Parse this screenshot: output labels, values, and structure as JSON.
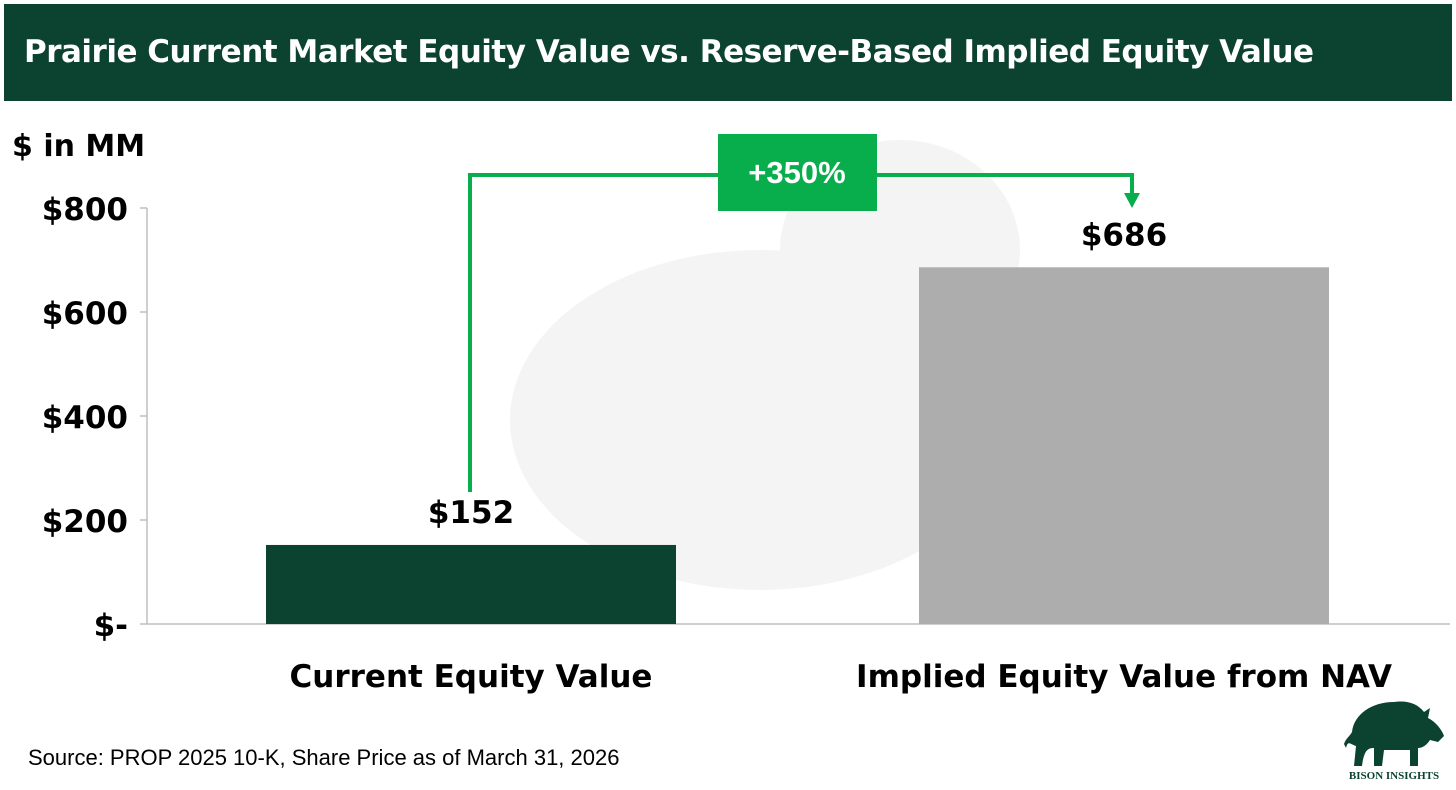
{
  "header": {
    "title": "Prairie Current Market Equity Value vs. Reserve-Based Implied Equity Value"
  },
  "chart_data": {
    "type": "bar",
    "title": "Prairie Current Market Equity Value vs. Reserve-Based Implied Equity Value",
    "ylabel": "$ in MM",
    "xlabel": "",
    "categories": [
      "Current Equity Value",
      "Implied Equity Value from NAV"
    ],
    "values": [
      152,
      686
    ],
    "data_labels": [
      "$152",
      "$686"
    ],
    "bar_colors": [
      "#0b4230",
      "#adadad"
    ],
    "ylim": [
      0,
      800
    ],
    "yticks": [
      0,
      200,
      400,
      600,
      800
    ],
    "ytick_labels": [
      "$-",
      "$200",
      "$400",
      "$600",
      "$800"
    ],
    "grid": false,
    "annotation": {
      "label": "+350%",
      "color": "#08ad4c",
      "from": "Current Equity Value",
      "to": "Implied Equity Value from NAV"
    }
  },
  "footer": {
    "source": "Source: PROP 2025 10-K, Share Price as of March 31, 2026",
    "logo_text": "BISON INSIGHTS"
  }
}
